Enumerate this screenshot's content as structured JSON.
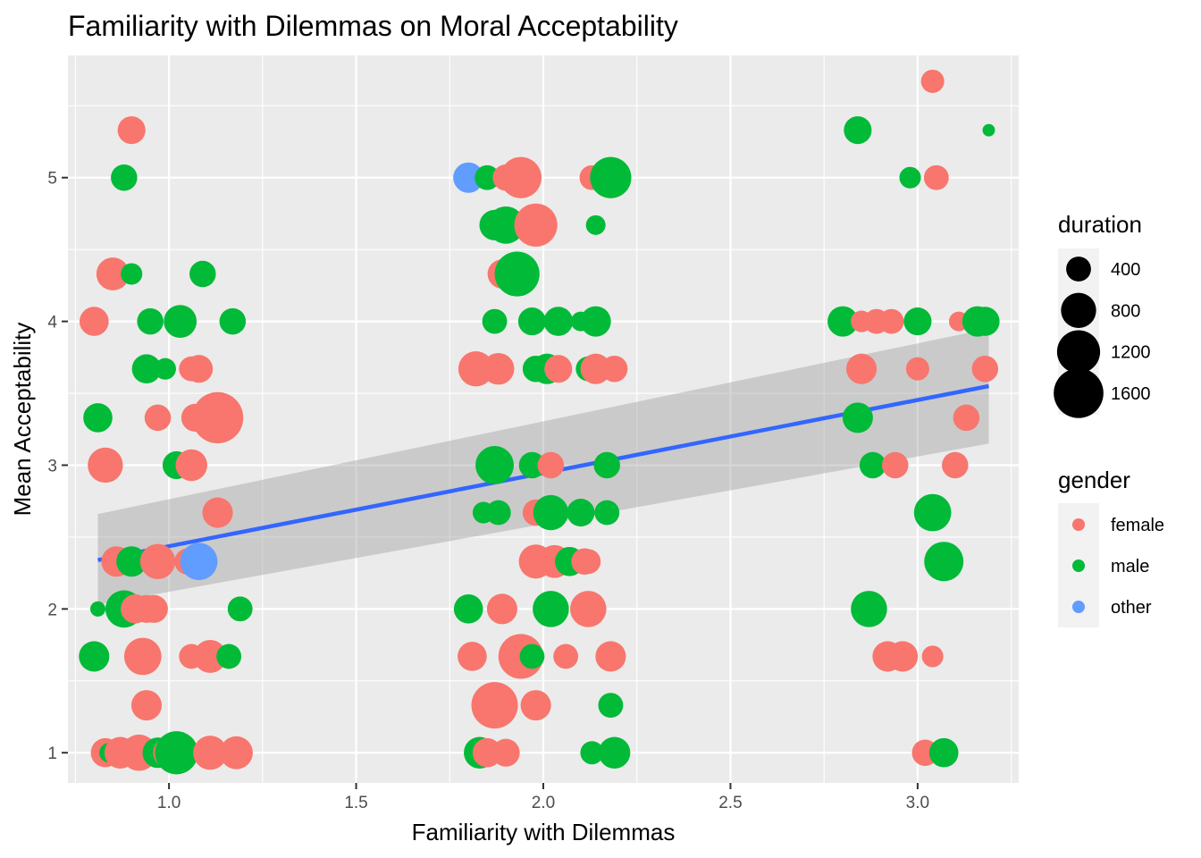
{
  "chart_data": {
    "type": "scatter",
    "title": "Familiarity with Dilemmas on Moral Acceptability",
    "xlabel": "Familiarity with Dilemmas",
    "ylabel": "Mean Acceptability",
    "xlim": [
      0.73,
      3.27
    ],
    "ylim": [
      0.79,
      5.85
    ],
    "x_ticks": [
      1.0,
      1.5,
      2.0,
      2.5,
      3.0
    ],
    "x_tick_labels": [
      "1.0",
      "1.5",
      "2.0",
      "2.5",
      "3.0"
    ],
    "y_ticks": [
      1,
      2,
      3,
      4,
      5
    ],
    "y_tick_labels": [
      "1",
      "2",
      "3",
      "4",
      "5"
    ],
    "grid": true,
    "colors": {
      "female": "#F8766D",
      "male": "#00BA38",
      "other": "#619CFF",
      "trend": "#3366FF",
      "band": "#999999",
      "panel": "#EBEBEB"
    },
    "legend": {
      "placement": "right",
      "size": {
        "title": "duration",
        "labels": [
          "400",
          "800",
          "1200",
          "1600"
        ],
        "values": [
          400,
          800,
          1200,
          1600
        ]
      },
      "color": {
        "title": "gender",
        "labels": [
          "female",
          "male",
          "other"
        ],
        "keys": [
          "female",
          "male",
          "other"
        ]
      }
    },
    "trend": {
      "x": [
        0.81,
        3.19
      ],
      "y": [
        2.34,
        3.55
      ],
      "band_lower": [
        2.03,
        3.15
      ],
      "band_upper": [
        2.66,
        3.95
      ]
    },
    "points": [
      {
        "x": 0.9,
        "y": 5.33,
        "g": "female",
        "d": 500
      },
      {
        "x": 0.88,
        "y": 5.0,
        "g": "male",
        "d": 450
      },
      {
        "x": 0.85,
        "y": 4.33,
        "g": "female",
        "d": 700
      },
      {
        "x": 0.9,
        "y": 4.33,
        "g": "male",
        "d": 300
      },
      {
        "x": 1.09,
        "y": 4.33,
        "g": "male",
        "d": 450
      },
      {
        "x": 0.8,
        "y": 4.0,
        "g": "female",
        "d": 550
      },
      {
        "x": 0.95,
        "y": 4.0,
        "g": "male",
        "d": 450
      },
      {
        "x": 1.03,
        "y": 4.0,
        "g": "male",
        "d": 700
      },
      {
        "x": 1.17,
        "y": 4.0,
        "g": "male",
        "d": 450
      },
      {
        "x": 0.94,
        "y": 3.67,
        "g": "male",
        "d": 550
      },
      {
        "x": 0.99,
        "y": 3.67,
        "g": "male",
        "d": 300
      },
      {
        "x": 1.06,
        "y": 3.67,
        "g": "female",
        "d": 400
      },
      {
        "x": 1.08,
        "y": 3.67,
        "g": "female",
        "d": 500
      },
      {
        "x": 0.81,
        "y": 3.33,
        "g": "male",
        "d": 550
      },
      {
        "x": 0.97,
        "y": 3.33,
        "g": "female",
        "d": 450
      },
      {
        "x": 1.07,
        "y": 3.33,
        "g": "female",
        "d": 500
      },
      {
        "x": 1.13,
        "y": 3.33,
        "g": "female",
        "d": 1700
      },
      {
        "x": 0.83,
        "y": 3.0,
        "g": "female",
        "d": 800
      },
      {
        "x": 1.02,
        "y": 3.0,
        "g": "male",
        "d": 500
      },
      {
        "x": 1.06,
        "y": 3.0,
        "g": "female",
        "d": 650
      },
      {
        "x": 1.13,
        "y": 2.67,
        "g": "female",
        "d": 600
      },
      {
        "x": 0.86,
        "y": 2.33,
        "g": "female",
        "d": 600
      },
      {
        "x": 0.9,
        "y": 2.33,
        "g": "male",
        "d": 600
      },
      {
        "x": 0.97,
        "y": 2.33,
        "g": "female",
        "d": 800
      },
      {
        "x": 1.05,
        "y": 2.33,
        "g": "female",
        "d": 450
      },
      {
        "x": 1.08,
        "y": 2.33,
        "g": "other",
        "d": 900
      },
      {
        "x": 0.81,
        "y": 2.0,
        "g": "male",
        "d": 150
      },
      {
        "x": 0.88,
        "y": 2.0,
        "g": "male",
        "d": 900
      },
      {
        "x": 0.91,
        "y": 2.0,
        "g": "female",
        "d": 550
      },
      {
        "x": 0.94,
        "y": 2.0,
        "g": "female",
        "d": 500
      },
      {
        "x": 0.96,
        "y": 2.0,
        "g": "female",
        "d": 500
      },
      {
        "x": 1.19,
        "y": 2.0,
        "g": "male",
        "d": 400
      },
      {
        "x": 0.8,
        "y": 1.67,
        "g": "male",
        "d": 600
      },
      {
        "x": 0.93,
        "y": 1.67,
        "g": "female",
        "d": 900
      },
      {
        "x": 1.06,
        "y": 1.67,
        "g": "female",
        "d": 400
      },
      {
        "x": 1.11,
        "y": 1.67,
        "g": "female",
        "d": 700
      },
      {
        "x": 1.16,
        "y": 1.67,
        "g": "male",
        "d": 400
      },
      {
        "x": 0.94,
        "y": 1.33,
        "g": "female",
        "d": 600
      },
      {
        "x": 0.83,
        "y": 1.0,
        "g": "female",
        "d": 550
      },
      {
        "x": 0.84,
        "y": 1.0,
        "g": "male",
        "d": 250
      },
      {
        "x": 0.87,
        "y": 1.0,
        "g": "female",
        "d": 650
      },
      {
        "x": 0.92,
        "y": 1.0,
        "g": "female",
        "d": 850
      },
      {
        "x": 0.97,
        "y": 1.0,
        "g": "male",
        "d": 600
      },
      {
        "x": 1.0,
        "y": 1.0,
        "g": "female",
        "d": 650
      },
      {
        "x": 1.02,
        "y": 1.0,
        "g": "male",
        "d": 1200
      },
      {
        "x": 1.11,
        "y": 1.0,
        "g": "female",
        "d": 750
      },
      {
        "x": 1.18,
        "y": 1.0,
        "g": "female",
        "d": 700
      },
      {
        "x": 1.8,
        "y": 5.0,
        "g": "other",
        "d": 600
      },
      {
        "x": 1.85,
        "y": 5.0,
        "g": "male",
        "d": 400
      },
      {
        "x": 1.9,
        "y": 5.0,
        "g": "female",
        "d": 450
      },
      {
        "x": 1.94,
        "y": 5.0,
        "g": "female",
        "d": 1100
      },
      {
        "x": 2.13,
        "y": 5.0,
        "g": "female",
        "d": 400
      },
      {
        "x": 2.18,
        "y": 5.0,
        "g": "male",
        "d": 1100
      },
      {
        "x": 1.87,
        "y": 4.67,
        "g": "male",
        "d": 600
      },
      {
        "x": 1.9,
        "y": 4.67,
        "g": "male",
        "d": 900
      },
      {
        "x": 1.98,
        "y": 4.67,
        "g": "female",
        "d": 1200
      },
      {
        "x": 2.14,
        "y": 4.67,
        "g": "male",
        "d": 250
      },
      {
        "x": 1.89,
        "y": 4.33,
        "g": "female",
        "d": 550
      },
      {
        "x": 1.93,
        "y": 4.33,
        "g": "male",
        "d": 1300
      },
      {
        "x": 1.87,
        "y": 4.0,
        "g": "male",
        "d": 400
      },
      {
        "x": 1.97,
        "y": 4.0,
        "g": "male",
        "d": 500
      },
      {
        "x": 2.04,
        "y": 4.0,
        "g": "male",
        "d": 550
      },
      {
        "x": 2.1,
        "y": 4.0,
        "g": "male",
        "d": 250
      },
      {
        "x": 2.14,
        "y": 4.0,
        "g": "male",
        "d": 600
      },
      {
        "x": 1.82,
        "y": 3.67,
        "g": "female",
        "d": 800
      },
      {
        "x": 1.88,
        "y": 3.67,
        "g": "female",
        "d": 650
      },
      {
        "x": 1.98,
        "y": 3.67,
        "g": "male",
        "d": 450
      },
      {
        "x": 2.01,
        "y": 3.67,
        "g": "male",
        "d": 600
      },
      {
        "x": 2.04,
        "y": 3.67,
        "g": "female",
        "d": 500
      },
      {
        "x": 2.12,
        "y": 3.67,
        "g": "male",
        "d": 400
      },
      {
        "x": 2.14,
        "y": 3.67,
        "g": "female",
        "d": 600
      },
      {
        "x": 2.19,
        "y": 3.67,
        "g": "female",
        "d": 450
      },
      {
        "x": 1.87,
        "y": 3.0,
        "g": "male",
        "d": 950
      },
      {
        "x": 1.97,
        "y": 3.0,
        "g": "male",
        "d": 450
      },
      {
        "x": 2.02,
        "y": 3.0,
        "g": "female",
        "d": 450
      },
      {
        "x": 2.17,
        "y": 3.0,
        "g": "male",
        "d": 450
      },
      {
        "x": 1.84,
        "y": 2.67,
        "g": "male",
        "d": 300
      },
      {
        "x": 1.88,
        "y": 2.67,
        "g": "male",
        "d": 400
      },
      {
        "x": 1.98,
        "y": 2.67,
        "g": "female",
        "d": 450
      },
      {
        "x": 2.02,
        "y": 2.67,
        "g": "male",
        "d": 800
      },
      {
        "x": 2.1,
        "y": 2.67,
        "g": "male",
        "d": 500
      },
      {
        "x": 2.17,
        "y": 2.67,
        "g": "male",
        "d": 400
      },
      {
        "x": 1.98,
        "y": 2.33,
        "g": "female",
        "d": 750
      },
      {
        "x": 2.03,
        "y": 2.33,
        "g": "female",
        "d": 700
      },
      {
        "x": 2.07,
        "y": 2.33,
        "g": "male",
        "d": 550
      },
      {
        "x": 2.11,
        "y": 2.33,
        "g": "female",
        "d": 450
      },
      {
        "x": 2.12,
        "y": 2.33,
        "g": "female",
        "d": 400
      },
      {
        "x": 1.8,
        "y": 2.0,
        "g": "male",
        "d": 550
      },
      {
        "x": 1.89,
        "y": 2.0,
        "g": "female",
        "d": 600
      },
      {
        "x": 2.02,
        "y": 2.0,
        "g": "male",
        "d": 850
      },
      {
        "x": 2.12,
        "y": 2.0,
        "g": "female",
        "d": 850
      },
      {
        "x": 1.81,
        "y": 1.67,
        "g": "female",
        "d": 550
      },
      {
        "x": 1.94,
        "y": 1.67,
        "g": "female",
        "d": 1300
      },
      {
        "x": 1.97,
        "y": 1.67,
        "g": "male",
        "d": 400
      },
      {
        "x": 2.06,
        "y": 1.67,
        "g": "female",
        "d": 400
      },
      {
        "x": 2.18,
        "y": 1.67,
        "g": "female",
        "d": 600
      },
      {
        "x": 1.87,
        "y": 1.33,
        "g": "female",
        "d": 1400
      },
      {
        "x": 1.98,
        "y": 1.33,
        "g": "female",
        "d": 600
      },
      {
        "x": 2.18,
        "y": 1.33,
        "g": "male",
        "d": 400
      },
      {
        "x": 1.83,
        "y": 1.0,
        "g": "male",
        "d": 650
      },
      {
        "x": 1.85,
        "y": 1.0,
        "g": "female",
        "d": 550
      },
      {
        "x": 1.9,
        "y": 1.0,
        "g": "female",
        "d": 500
      },
      {
        "x": 2.13,
        "y": 1.0,
        "g": "male",
        "d": 350
      },
      {
        "x": 2.19,
        "y": 1.0,
        "g": "male",
        "d": 650
      },
      {
        "x": 3.04,
        "y": 5.67,
        "g": "female",
        "d": 350
      },
      {
        "x": 2.84,
        "y": 5.33,
        "g": "male",
        "d": 500
      },
      {
        "x": 3.19,
        "y": 5.33,
        "g": "male",
        "d": 100
      },
      {
        "x": 2.98,
        "y": 5.0,
        "g": "male",
        "d": 300
      },
      {
        "x": 3.05,
        "y": 5.0,
        "g": "female",
        "d": 400
      },
      {
        "x": 2.8,
        "y": 4.0,
        "g": "male",
        "d": 600
      },
      {
        "x": 2.85,
        "y": 4.0,
        "g": "female",
        "d": 300
      },
      {
        "x": 2.89,
        "y": 4.0,
        "g": "female",
        "d": 400
      },
      {
        "x": 2.93,
        "y": 4.0,
        "g": "female",
        "d": 400
      },
      {
        "x": 3.0,
        "y": 4.0,
        "g": "male",
        "d": 500
      },
      {
        "x": 3.11,
        "y": 4.0,
        "g": "female",
        "d": 250
      },
      {
        "x": 3.16,
        "y": 4.0,
        "g": "male",
        "d": 600
      },
      {
        "x": 3.18,
        "y": 4.0,
        "g": "male",
        "d": 550
      },
      {
        "x": 2.85,
        "y": 3.67,
        "g": "female",
        "d": 600
      },
      {
        "x": 3.0,
        "y": 3.67,
        "g": "female",
        "d": 350
      },
      {
        "x": 3.18,
        "y": 3.67,
        "g": "female",
        "d": 450
      },
      {
        "x": 2.84,
        "y": 3.33,
        "g": "male",
        "d": 600
      },
      {
        "x": 3.13,
        "y": 3.33,
        "g": "female",
        "d": 450
      },
      {
        "x": 2.88,
        "y": 3.0,
        "g": "male",
        "d": 450
      },
      {
        "x": 2.94,
        "y": 3.0,
        "g": "female",
        "d": 450
      },
      {
        "x": 3.1,
        "y": 3.0,
        "g": "female",
        "d": 450
      },
      {
        "x": 3.04,
        "y": 2.67,
        "g": "male",
        "d": 900
      },
      {
        "x": 3.07,
        "y": 2.33,
        "g": "male",
        "d": 1000
      },
      {
        "x": 2.87,
        "y": 2.0,
        "g": "male",
        "d": 850
      },
      {
        "x": 2.92,
        "y": 1.67,
        "g": "female",
        "d": 600
      },
      {
        "x": 2.96,
        "y": 1.67,
        "g": "female",
        "d": 600
      },
      {
        "x": 3.04,
        "y": 1.67,
        "g": "female",
        "d": 300
      },
      {
        "x": 3.02,
        "y": 1.0,
        "g": "female",
        "d": 450
      },
      {
        "x": 3.07,
        "y": 1.0,
        "g": "male",
        "d": 550
      }
    ]
  }
}
